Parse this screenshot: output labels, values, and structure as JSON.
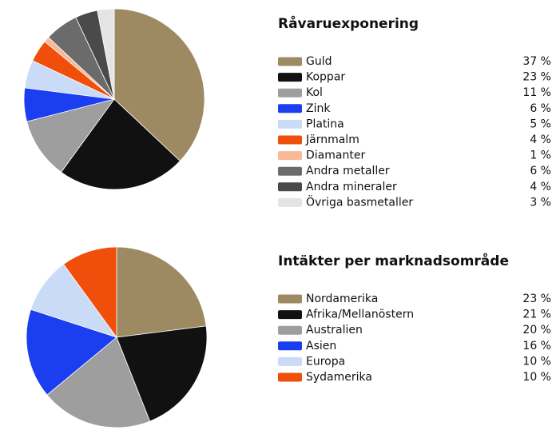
{
  "chart_data": [
    {
      "type": "pie",
      "title": "Råvaruexponering",
      "categories": [
        "Guld",
        "Koppar",
        "Kol",
        "Zink",
        "Platina",
        "Järnmalm",
        "Diamanter",
        "Andra metaller",
        "Andra mineraler",
        "Övriga basmetaller"
      ],
      "values": [
        37,
        23,
        11,
        6,
        5,
        4,
        1,
        6,
        4,
        3
      ],
      "value_labels": [
        "37 %",
        "23 %",
        "11 %",
        "6 %",
        "5 %",
        "4 %",
        "1 %",
        "6 %",
        "4 %",
        "3 %"
      ],
      "colors": [
        "#9e8a62",
        "#111111",
        "#9e9e9e",
        "#1a3ef0",
        "#c9dbf7",
        "#f04e0b",
        "#f9b896",
        "#6b6b6b",
        "#4a4a4a",
        "#e4e4e4"
      ]
    },
    {
      "type": "pie",
      "title": "Intäkter per marknadsområde",
      "categories": [
        "Nordamerika",
        "Afrika/Mellanöstern",
        "Australien",
        "Asien",
        "Europa",
        "Sydamerika"
      ],
      "values": [
        23,
        21,
        20,
        16,
        10,
        10
      ],
      "value_labels": [
        "23 %",
        "21 %",
        "20 %",
        "16 %",
        "10 %",
        "10 %"
      ],
      "colors": [
        "#9e8a62",
        "#111111",
        "#9e9e9e",
        "#1a3ef0",
        "#c9dbf7",
        "#f04e0b"
      ]
    }
  ]
}
